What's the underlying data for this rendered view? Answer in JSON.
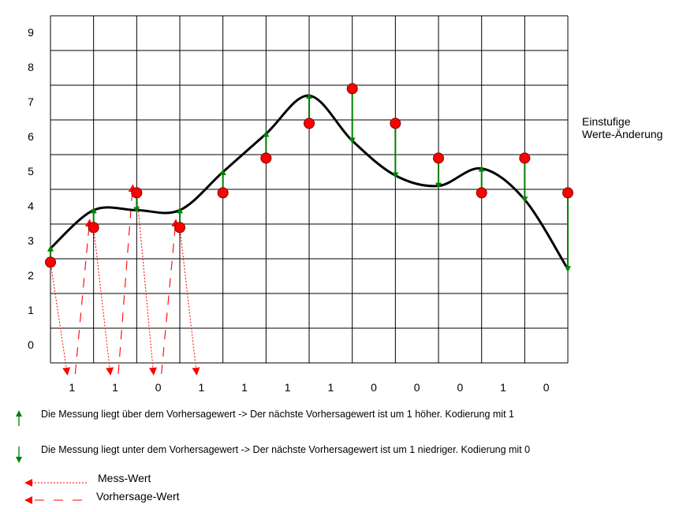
{
  "y_axis_labels": [
    "0",
    "1",
    "2",
    "3",
    "4",
    "5",
    "6",
    "7",
    "8",
    "9"
  ],
  "side_label": {
    "line1": "Einstufige",
    "line2": "Werte-Änderung"
  },
  "codes": [
    "1",
    "1",
    "0",
    "1",
    "1",
    "1",
    "1",
    "0",
    "0",
    "0",
    "1",
    "0"
  ],
  "legend": {
    "up_text": "Die Messung liegt über dem Vorhersagewert -> Der nächste Vorhersagewert ist um 1 höher. Kodierung mit 1",
    "down_text": "Die Messung liegt unter dem Vorhersagewert -> Der nächste Vorhersagewert ist um 1 niedriger. Kodierung mit 0",
    "measured_label": "Mess-Wert",
    "predicted_label": "Vorhersage-Wert"
  },
  "chart_data": {
    "type": "line",
    "x": [
      0,
      1,
      2,
      3,
      4,
      5,
      6,
      7,
      8,
      9,
      10,
      11,
      12
    ],
    "measured": [
      2.4,
      3.4,
      4.4,
      3.4,
      4.4,
      5.4,
      6.4,
      7.4,
      6.4,
      5.4,
      4.4,
      5.4,
      4.4
    ],
    "predicted": [
      2.8,
      3.9,
      3.9,
      3.9,
      5.0,
      6.1,
      7.2,
      5.9,
      4.9,
      4.6,
      5.1,
      4.2,
      2.2
    ],
    "colors": {
      "measured": "#ff0000",
      "arrows": "#008000",
      "curve": "#000000",
      "prediction_link": "#ff0000"
    }
  }
}
